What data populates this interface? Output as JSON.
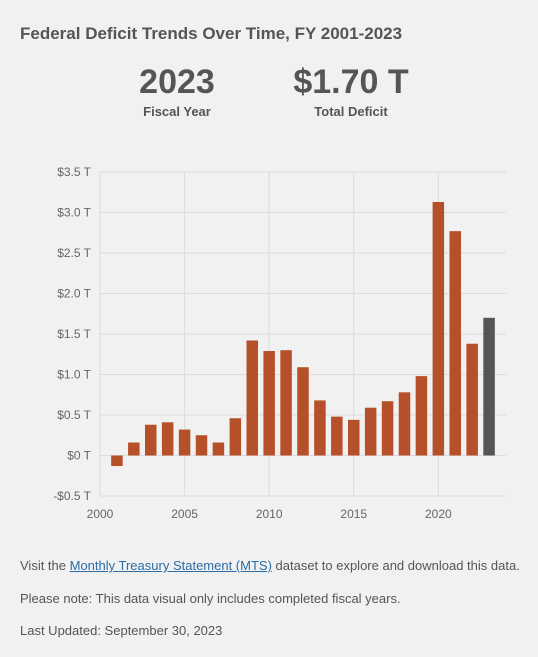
{
  "header": {
    "title": "Federal Deficit Trends Over Time, FY 2001-2023"
  },
  "stats": {
    "year_value": "2023",
    "year_label": "Fiscal Year",
    "total_value": "$1.70 T",
    "total_label": "Total Deficit"
  },
  "colors": {
    "bar": "#b5502a",
    "highlight": "#555555",
    "grid": "#dcdcdc"
  },
  "chart_data": {
    "type": "bar",
    "x": [
      2001,
      2002,
      2003,
      2004,
      2005,
      2006,
      2007,
      2008,
      2009,
      2010,
      2011,
      2012,
      2013,
      2014,
      2015,
      2016,
      2017,
      2018,
      2019,
      2020,
      2021,
      2022,
      2023
    ],
    "values": [
      -0.13,
      0.16,
      0.38,
      0.41,
      0.32,
      0.25,
      0.16,
      0.46,
      1.42,
      1.29,
      1.3,
      1.09,
      0.68,
      0.48,
      0.44,
      0.59,
      0.67,
      0.78,
      0.98,
      3.13,
      2.77,
      1.38,
      1.7
    ],
    "highlight_x": 2023,
    "y_ticks": [
      -0.5,
      0,
      0.5,
      1.0,
      1.5,
      2.0,
      2.5,
      3.0,
      3.5
    ],
    "y_tick_labels": [
      "-$0.5 T",
      "$0 T",
      "$0.5 T",
      "$1.0 T",
      "$1.5 T",
      "$2.0 T",
      "$2.5 T",
      "$3.0 T",
      "$3.5 T"
    ],
    "x_ticks": [
      2000,
      2005,
      2010,
      2015,
      2020
    ],
    "x_tick_labels": [
      "2000",
      "2005",
      "2010",
      "2015",
      "2020"
    ],
    "ylim": [
      -0.5,
      3.5
    ],
    "xlim": [
      2000,
      2024
    ],
    "grid": true,
    "legend": "none"
  },
  "footer": {
    "line1_prefix": "Visit the ",
    "line1_link": "Monthly Treasury Statement (MTS)",
    "line1_suffix": " dataset to explore and download this data.",
    "line2": "Please note: This data visual only includes completed fiscal years.",
    "line3": "Last Updated: September 30, 2023"
  }
}
